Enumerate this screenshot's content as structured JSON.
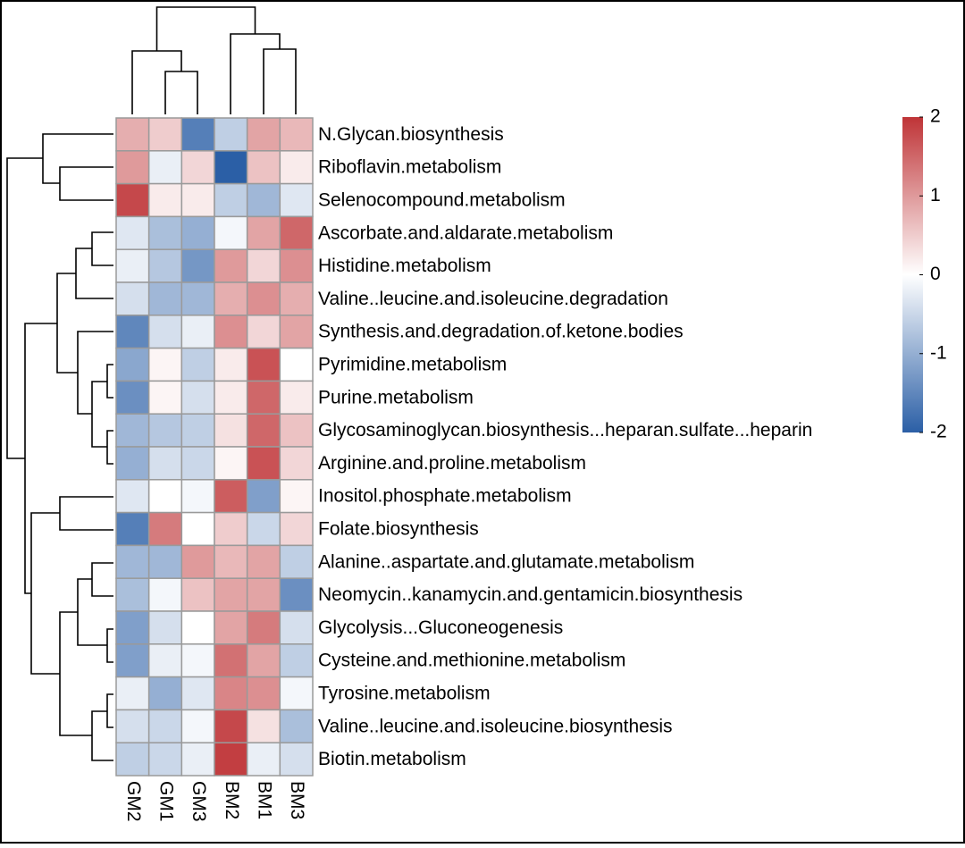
{
  "chart_data": {
    "type": "heatmap",
    "columns": [
      "GM2",
      "GM1",
      "GM3",
      "BM2",
      "BM1",
      "BM3"
    ],
    "rows": [
      "N.Glycan.biosynthesis",
      "Riboflavin.metabolism",
      "Selenocompound.metabolism",
      "Ascorbate.and.aldarate.metabolism",
      "Histidine.metabolism",
      "Valine..leucine.and.isoleucine.degradation",
      "Synthesis.and.degradation.of.ketone.bodies",
      "Pyrimidine.metabolism",
      "Purine.metabolism",
      "Glycosaminoglycan.biosynthesis...heparan.sulfate...heparin",
      "Arginine.and.proline.metabolism",
      "Inositol.phosphate.metabolism",
      "Folate.biosynthesis",
      "Alanine..aspartate.and.glutamate.metabolism",
      "Neomycin..kanamycin.and.gentamicin.biosynthesis",
      "Glycolysis...Gluconeogenesis",
      "Cysteine.and.methionine.metabolism",
      "Tyrosine.metabolism",
      "Valine..leucine.and.isoleucine.biosynthesis",
      "Biotin.metabolism"
    ],
    "values": [
      [
        0.8,
        0.5,
        -1.6,
        -0.6,
        0.9,
        0.7
      ],
      [
        1.0,
        -0.2,
        0.4,
        -2.0,
        0.6,
        0.2
      ],
      [
        1.8,
        0.2,
        0.2,
        -0.6,
        -0.9,
        -0.3
      ],
      [
        -0.3,
        -0.8,
        -1.0,
        -0.1,
        0.9,
        1.5
      ],
      [
        -0.2,
        -0.7,
        -1.3,
        1.0,
        0.4,
        1.1
      ],
      [
        -0.4,
        -0.9,
        -0.9,
        0.8,
        1.1,
        0.8
      ],
      [
        -1.5,
        -0.4,
        -0.2,
        1.1,
        0.4,
        0.9
      ],
      [
        -1.1,
        0.1,
        -0.6,
        0.2,
        1.7,
        0.0
      ],
      [
        -1.4,
        0.1,
        -0.4,
        0.2,
        1.5,
        0.2
      ],
      [
        -0.9,
        -0.7,
        -0.6,
        0.3,
        1.5,
        0.6
      ],
      [
        -1.0,
        -0.4,
        -0.5,
        0.1,
        1.7,
        0.4
      ],
      [
        -0.3,
        0.0,
        -0.1,
        1.6,
        -1.2,
        0.1
      ],
      [
        -1.6,
        1.3,
        0.0,
        0.5,
        -0.5,
        0.4
      ],
      [
        -0.9,
        -0.9,
        1.0,
        0.7,
        0.9,
        -0.6
      ],
      [
        -0.8,
        -0.1,
        0.6,
        0.9,
        0.9,
        -1.4
      ],
      [
        -1.2,
        -0.4,
        0.0,
        0.9,
        1.3,
        -0.4
      ],
      [
        -1.2,
        -0.2,
        -0.1,
        1.4,
        0.9,
        -0.6
      ],
      [
        -0.2,
        -1.0,
        -0.3,
        1.2,
        1.1,
        -0.1
      ],
      [
        -0.4,
        -0.5,
        -0.1,
        1.8,
        0.3,
        -0.8
      ],
      [
        -0.6,
        -0.5,
        -0.2,
        1.9,
        -0.2,
        -0.4
      ]
    ],
    "colors": [
      "#2b5fa6",
      "#ffffff",
      "#bf3437"
    ],
    "clim": [
      -2,
      2
    ],
    "cticks": [
      -2,
      -1,
      0,
      1,
      2
    ]
  }
}
